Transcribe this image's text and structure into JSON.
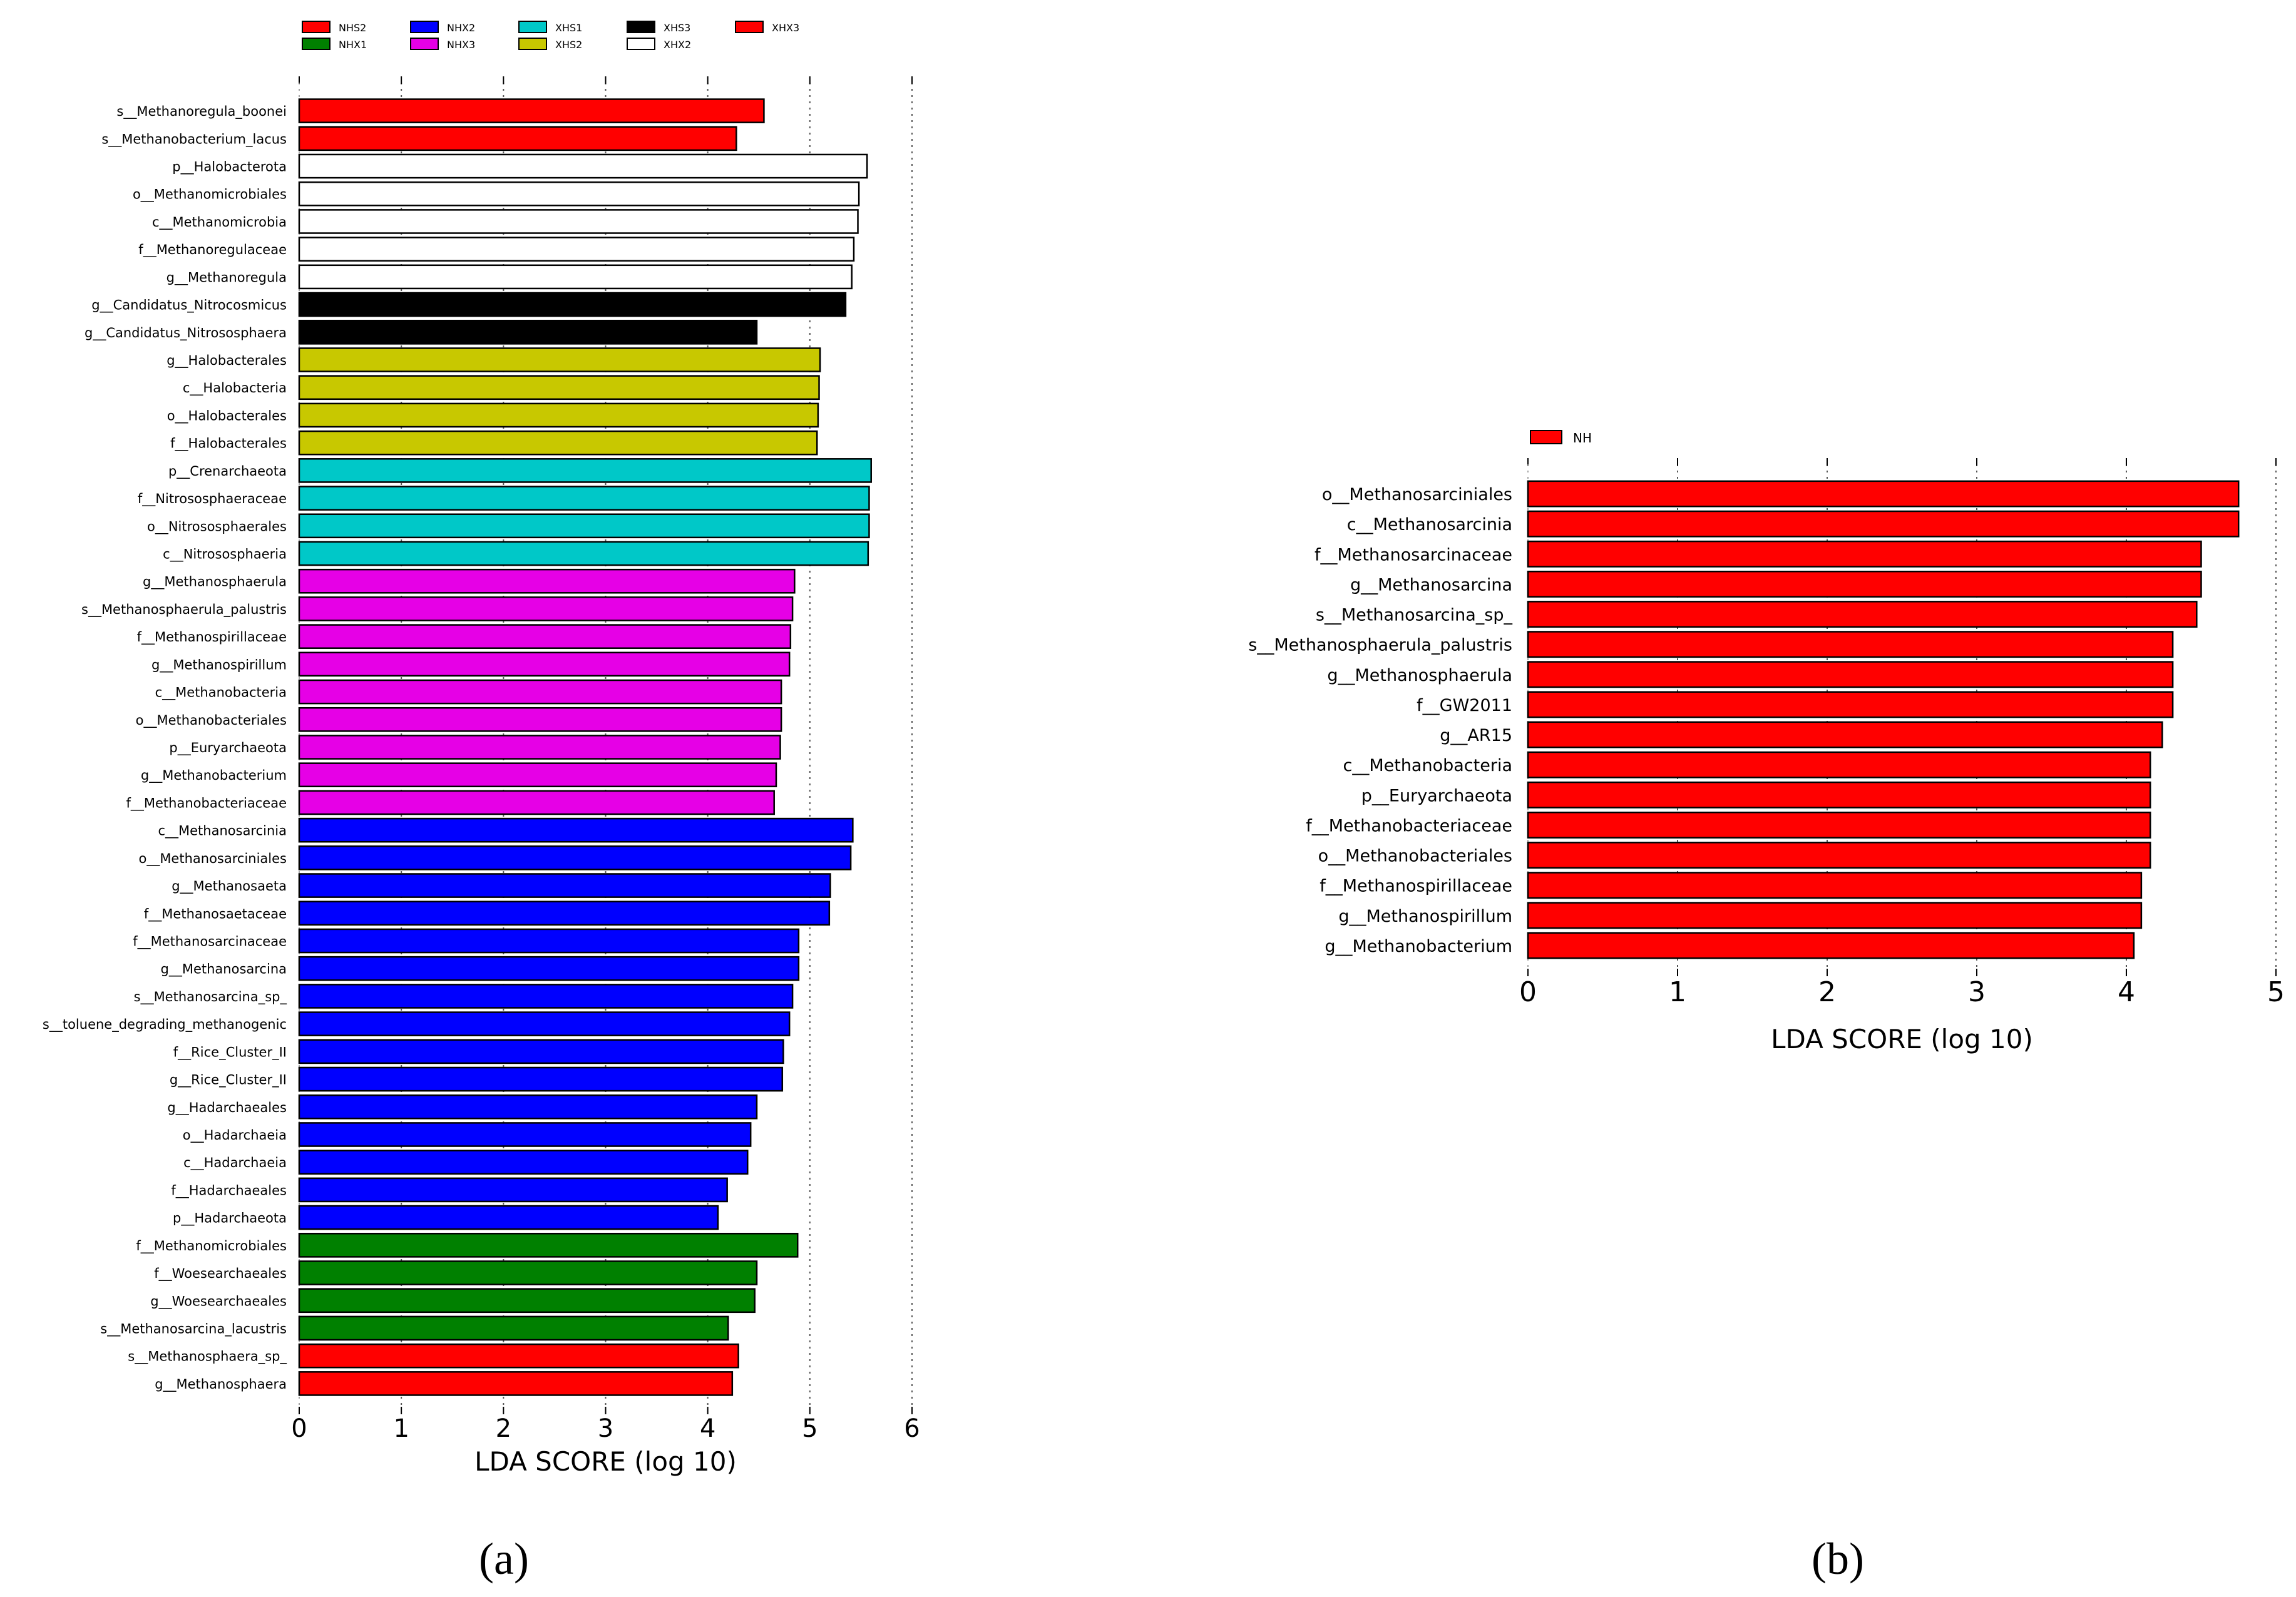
{
  "chart_data": [
    {
      "id": "a",
      "type": "bar",
      "orientation": "horizontal",
      "panel_label": "(a)",
      "xlabel": "LDA SCORE (log 10)",
      "xlim": [
        0,
        6
      ],
      "xticks": [
        "0",
        "1",
        "2",
        "3",
        "4",
        "5",
        "6"
      ],
      "legend": [
        {
          "name": "NHS2",
          "color": "#ff0000"
        },
        {
          "name": "NHX1",
          "color": "#008000"
        },
        {
          "name": "NHX2",
          "color": "#0000ff"
        },
        {
          "name": "NHX3",
          "color": "#e600e6"
        },
        {
          "name": "XHS1",
          "color": "#00c8c8"
        },
        {
          "name": "XHS2",
          "color": "#c8c800"
        },
        {
          "name": "XHS3",
          "color": "#000000"
        },
        {
          "name": "XHX2",
          "color": "#ffffff"
        },
        {
          "name": "XHX3",
          "color": "#ff0000"
        }
      ],
      "bars": [
        {
          "label": "s__Methanoregula_boonei",
          "value": 4.55,
          "group": "XHX3"
        },
        {
          "label": "s__Methanobacterium_lacus",
          "value": 4.28,
          "group": "XHX3"
        },
        {
          "label": "p__Halobacterota",
          "value": 5.56,
          "group": "XHX2"
        },
        {
          "label": "o__Methanomicrobiales",
          "value": 5.48,
          "group": "XHX2"
        },
        {
          "label": "c__Methanomicrobia",
          "value": 5.47,
          "group": "XHX2"
        },
        {
          "label": "f__Methanoregulaceae",
          "value": 5.43,
          "group": "XHX2"
        },
        {
          "label": "g__Methanoregula",
          "value": 5.41,
          "group": "XHX2"
        },
        {
          "label": "g__Candidatus_Nitrocosmicus",
          "value": 5.35,
          "group": "XHS3"
        },
        {
          "label": "g__Candidatus_Nitrososphaera",
          "value": 4.48,
          "group": "XHS3"
        },
        {
          "label": "g__Halobacterales",
          "value": 5.1,
          "group": "XHS2"
        },
        {
          "label": "c__Halobacteria",
          "value": 5.09,
          "group": "XHS2"
        },
        {
          "label": "o__Halobacterales",
          "value": 5.08,
          "group": "XHS2"
        },
        {
          "label": "f__Halobacterales",
          "value": 5.07,
          "group": "XHS2"
        },
        {
          "label": "p__Crenarchaeota",
          "value": 5.6,
          "group": "XHS1"
        },
        {
          "label": "f__Nitrososphaeraceae",
          "value": 5.58,
          "group": "XHS1"
        },
        {
          "label": "o__Nitrososphaerales",
          "value": 5.58,
          "group": "XHS1"
        },
        {
          "label": "c__Nitrososphaeria",
          "value": 5.57,
          "group": "XHS1"
        },
        {
          "label": "g__Methanosphaerula",
          "value": 4.85,
          "group": "NHX3"
        },
        {
          "label": "s__Methanosphaerula_palustris",
          "value": 4.83,
          "group": "NHX3"
        },
        {
          "label": "f__Methanospirillaceae",
          "value": 4.81,
          "group": "NHX3"
        },
        {
          "label": "g__Methanospirillum",
          "value": 4.8,
          "group": "NHX3"
        },
        {
          "label": "c__Methanobacteria",
          "value": 4.72,
          "group": "NHX3"
        },
        {
          "label": "o__Methanobacteriales",
          "value": 4.72,
          "group": "NHX3"
        },
        {
          "label": "p__Euryarchaeota",
          "value": 4.71,
          "group": "NHX3"
        },
        {
          "label": "g__Methanobacterium",
          "value": 4.67,
          "group": "NHX3"
        },
        {
          "label": "f__Methanobacteriaceae",
          "value": 4.65,
          "group": "NHX3"
        },
        {
          "label": "c__Methanosarcinia",
          "value": 5.42,
          "group": "NHX2"
        },
        {
          "label": "o__Methanosarciniales",
          "value": 5.4,
          "group": "NHX2"
        },
        {
          "label": "g__Methanosaeta",
          "value": 5.2,
          "group": "NHX2"
        },
        {
          "label": "f__Methanosaetaceae",
          "value": 5.19,
          "group": "NHX2"
        },
        {
          "label": "f__Methanosarcinaceae",
          "value": 4.89,
          "group": "NHX2"
        },
        {
          "label": "g__Methanosarcina",
          "value": 4.89,
          "group": "NHX2"
        },
        {
          "label": "s__Methanosarcina_sp_",
          "value": 4.83,
          "group": "NHX2"
        },
        {
          "label": "s__toluene_degrading_methanogenic",
          "value": 4.8,
          "group": "NHX2"
        },
        {
          "label": "f__Rice_Cluster_II",
          "value": 4.74,
          "group": "NHX2"
        },
        {
          "label": "g__Rice_Cluster_II",
          "value": 4.73,
          "group": "NHX2"
        },
        {
          "label": "g__Hadarchaeales",
          "value": 4.48,
          "group": "NHX2"
        },
        {
          "label": "o__Hadarchaeia",
          "value": 4.42,
          "group": "NHX2"
        },
        {
          "label": "c__Hadarchaeia",
          "value": 4.39,
          "group": "NHX2"
        },
        {
          "label": "f__Hadarchaeales",
          "value": 4.19,
          "group": "NHX2"
        },
        {
          "label": "p__Hadarchaeota",
          "value": 4.1,
          "group": "NHX2"
        },
        {
          "label": "f__Methanomicrobiales",
          "value": 4.88,
          "group": "NHX1"
        },
        {
          "label": "f__Woesearchaeales",
          "value": 4.48,
          "group": "NHX1"
        },
        {
          "label": "g__Woesearchaeales",
          "value": 4.46,
          "group": "NHX1"
        },
        {
          "label": "s__Methanosarcina_lacustris",
          "value": 4.2,
          "group": "NHX1"
        },
        {
          "label": "s__Methanosphaera_sp_",
          "value": 4.3,
          "group": "NHS2"
        },
        {
          "label": "g__Methanosphaera",
          "value": 4.24,
          "group": "NHS2"
        }
      ]
    },
    {
      "id": "b",
      "type": "bar",
      "orientation": "horizontal",
      "panel_label": "(b)",
      "xlabel": "LDA SCORE (log 10)",
      "xlim": [
        0,
        5
      ],
      "xticks": [
        "0",
        "1",
        "2",
        "3",
        "4",
        "5"
      ],
      "legend": [
        {
          "name": "NH",
          "color": "#ff0000"
        }
      ],
      "bars": [
        {
          "label": "o__Methanosarciniales",
          "value": 4.75,
          "group": "NH"
        },
        {
          "label": "c__Methanosarcinia",
          "value": 4.75,
          "group": "NH"
        },
        {
          "label": "f__Methanosarcinaceae",
          "value": 4.5,
          "group": "NH"
        },
        {
          "label": "g__Methanosarcina",
          "value": 4.5,
          "group": "NH"
        },
        {
          "label": "s__Methanosarcina_sp_",
          "value": 4.47,
          "group": "NH"
        },
        {
          "label": "s__Methanosphaerula_palustris",
          "value": 4.31,
          "group": "NH"
        },
        {
          "label": "g__Methanosphaerula",
          "value": 4.31,
          "group": "NH"
        },
        {
          "label": "f__GW2011",
          "value": 4.31,
          "group": "NH"
        },
        {
          "label": "g__AR15",
          "value": 4.24,
          "group": "NH"
        },
        {
          "label": "c__Methanobacteria",
          "value": 4.16,
          "group": "NH"
        },
        {
          "label": "p__Euryarchaeota",
          "value": 4.16,
          "group": "NH"
        },
        {
          "label": "f__Methanobacteriaceae",
          "value": 4.16,
          "group": "NH"
        },
        {
          "label": "o__Methanobacteriales",
          "value": 4.16,
          "group": "NH"
        },
        {
          "label": "f__Methanospirillaceae",
          "value": 4.1,
          "group": "NH"
        },
        {
          "label": "g__Methanospirillum",
          "value": 4.1,
          "group": "NH"
        },
        {
          "label": "g__Methanobacterium",
          "value": 4.05,
          "group": "NH"
        }
      ]
    }
  ]
}
